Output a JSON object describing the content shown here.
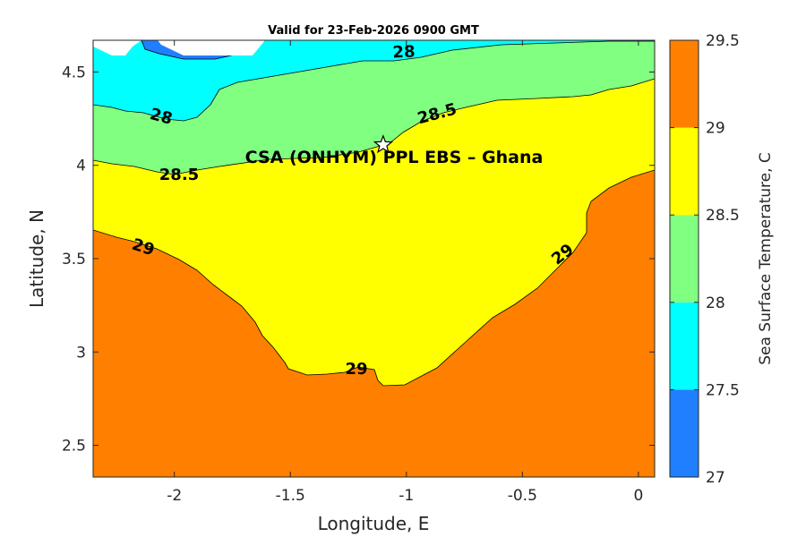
{
  "chart_data": {
    "type": "contour",
    "title": "Valid for 23-Feb-2026 0900 GMT",
    "xlabel": "Longitude, E",
    "ylabel": "Latitude, N",
    "xlim": [
      -2.35,
      0.07
    ],
    "ylim": [
      2.33,
      4.67
    ],
    "xticks": [
      -2,
      -1.5,
      -1,
      -0.5,
      0
    ],
    "xtick_labels": [
      "-2",
      "-1.5",
      "-1",
      "-0.5",
      "0"
    ],
    "yticks": [
      2.5,
      3,
      3.5,
      4,
      4.5
    ],
    "ytick_labels": [
      "2.5",
      "3",
      "3.5",
      "4",
      "4.5"
    ],
    "colorbar": {
      "label": "Sea Surface Temperature, C",
      "levels": [
        27,
        27.5,
        28,
        28.5,
        29,
        29.5
      ],
      "tick_labels": [
        "27",
        "27.5",
        "28",
        "28.5",
        "29",
        "29.5"
      ],
      "colors": [
        "#1f7fff",
        "#00ffff",
        "#80ff80",
        "#ffff00",
        "#ff8000"
      ]
    },
    "regions": [
      {
        "level_range": [
          29,
          29.5
        ],
        "color": "#ff8000"
      },
      {
        "level_range": [
          28.5,
          29
        ],
        "color": "#ffff00"
      },
      {
        "level_range": [
          28,
          28.5
        ],
        "color": "#80ff80"
      },
      {
        "level_range": [
          27.5,
          28
        ],
        "color": "#00ffff"
      },
      {
        "level_range": [
          27,
          27.5
        ],
        "color": "#1f7fff"
      }
    ],
    "contour_labels": [
      {
        "text": "28",
        "level": 28
      },
      {
        "text": "28",
        "level": 28
      },
      {
        "text": "28.5",
        "level": 28.5
      },
      {
        "text": "28.5",
        "level": 28.5
      },
      {
        "text": "29",
        "level": 29
      },
      {
        "text": "29",
        "level": 29
      },
      {
        "text": "29",
        "level": 29
      }
    ],
    "site": {
      "name": "CSA (ONHYM) PPL EBS  – Ghana",
      "lon": -1.1,
      "lat": 4.11,
      "marker": "star"
    }
  }
}
